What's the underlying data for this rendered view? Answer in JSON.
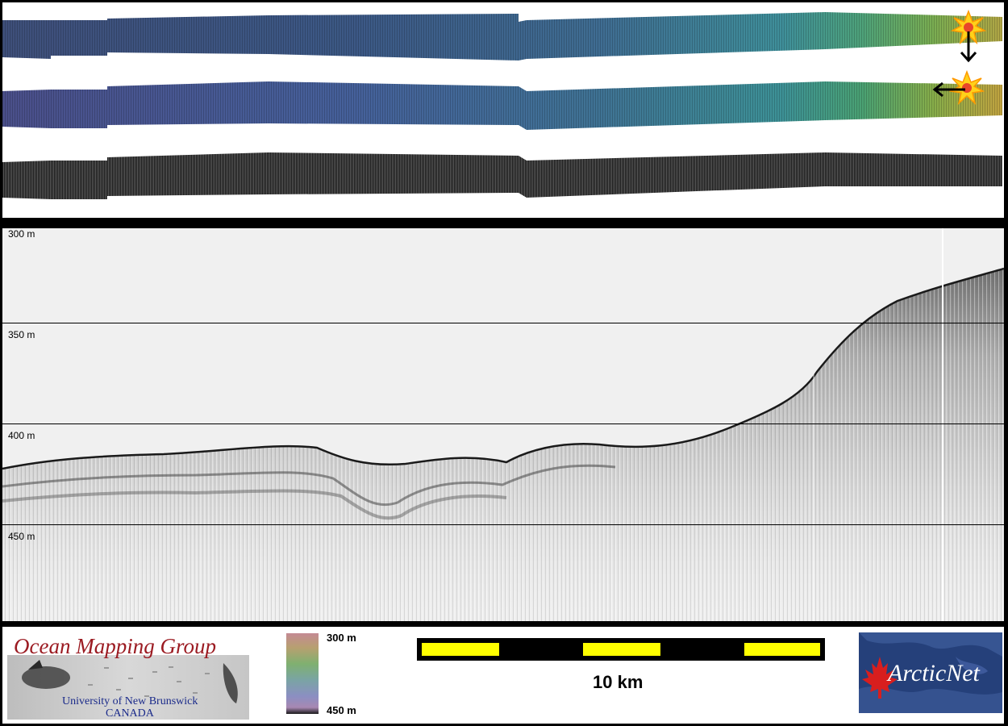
{
  "profile": {
    "depth_labels": [
      "300 m",
      "350 m",
      "400 m",
      "450 m"
    ]
  },
  "legend": {
    "color_bar_top_label": "300 m",
    "color_bar_bottom_label": "450 m"
  },
  "scale_bar": {
    "caption": "10 km",
    "colors": {
      "bar_fill": "#ffff00",
      "bar_gap": "#000000"
    }
  },
  "logos": {
    "ocean_mapping": {
      "title": "Ocean Mapping Group",
      "line1": "University of New Brunswick",
      "line2": "CANADA"
    },
    "arcticnet": {
      "text": "ArcticNet"
    }
  },
  "colors": {
    "frame": "#000000",
    "profile_background": "#f0f0f0",
    "omg_title": "#9b1b22",
    "omg_subtitle": "#1a2a8a",
    "arcticnet_bg": "#25407a"
  }
}
